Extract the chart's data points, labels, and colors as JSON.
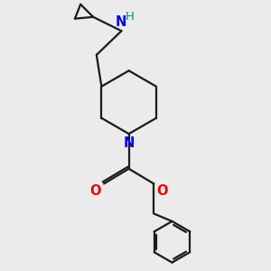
{
  "background_color": "#ebebeb",
  "bond_color": "#1a1a1a",
  "N_color": "#0000ee",
  "NH_color": "#008888",
  "O_color": "#ee0000",
  "line_width": 1.6,
  "font_size": 10.5,
  "figsize": [
    3.0,
    3.0
  ],
  "dpi": 100,
  "xlim": [
    0.5,
    7.5
  ],
  "ylim": [
    0.5,
    8.5
  ]
}
